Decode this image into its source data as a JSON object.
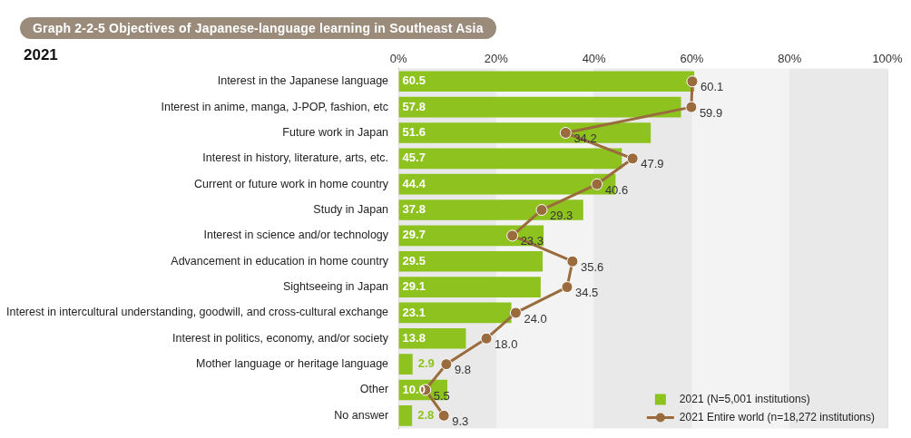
{
  "chart_data": {
    "type": "bar",
    "orientation": "horizontal",
    "title": "Graph 2-2-5  Objectives of Japanese-language learning in Southeast Asia",
    "subtitle": "2021",
    "categories": [
      "Interest in the Japanese language",
      "Interest in anime, manga, J-POP, fashion, etc",
      "Future work in Japan",
      "Interest in history, literature, arts, etc.",
      "Current or future work in home country",
      "Study in Japan",
      "Interest in science and/or technology",
      "Advancement in education in home country",
      "Sightseeing in Japan",
      "Interest in intercultural understanding, goodwill, and cross-cultural exchange",
      "Interest in politics, economy, and/or society",
      "Mother language or heritage language",
      "Other",
      "No answer"
    ],
    "series": [
      {
        "name": "2021 (N=5,001 institutions)",
        "color": "#8dc21f",
        "values": [
          60.5,
          57.8,
          51.6,
          45.7,
          44.4,
          37.8,
          29.7,
          29.5,
          29.1,
          23.1,
          13.8,
          2.9,
          10.0,
          2.8
        ],
        "value_labels": [
          "60.5",
          "57.8",
          "51.6",
          "45.7",
          "44.4",
          "37.8",
          "29.7",
          "29.5",
          "29.1",
          "23.1",
          "13.8",
          "2.9",
          "10.0",
          "2.8"
        ]
      },
      {
        "name": "2021 Entire world (n=18,272 institutions)",
        "type": "line",
        "color": "#9a6b3c",
        "marker": "circle",
        "values": [
          60.1,
          59.9,
          34.2,
          47.9,
          40.6,
          29.3,
          23.3,
          35.6,
          34.5,
          24.0,
          18.0,
          9.8,
          5.5,
          9.3
        ],
        "value_labels": [
          "60.1",
          "59.9",
          "34.2",
          "47.9",
          "40.6",
          "29.3",
          "23.3",
          "35.6",
          "34.5",
          "24.0",
          "18.0",
          "9.8",
          "5.5",
          "9.3"
        ]
      }
    ],
    "xlim": [
      0,
      100
    ],
    "xticks": [
      {
        "value": 0,
        "label": "0%"
      },
      {
        "value": 20,
        "label": "20%"
      },
      {
        "value": 40,
        "label": "40%"
      },
      {
        "value": 60,
        "label": "60%"
      },
      {
        "value": 80,
        "label": "80%"
      },
      {
        "value": 100,
        "label": "100%"
      }
    ],
    "grid": "x",
    "legend": "bottom right"
  }
}
